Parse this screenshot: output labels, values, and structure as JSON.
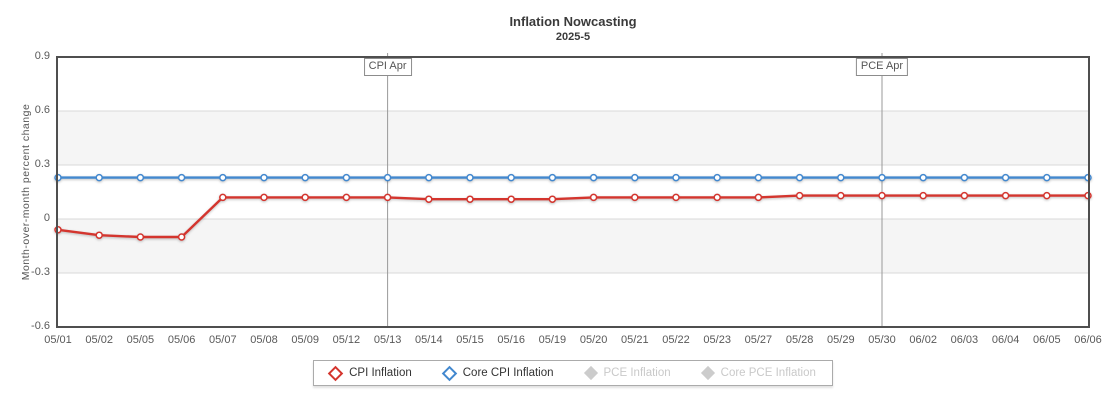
{
  "colors": {
    "cpi": "#d4352e",
    "core_cpi": "#4288cf",
    "disabled": "#cccccc",
    "band": "#f5f5f5",
    "grid": "#d9d9d9",
    "plot_border": "#4f4f4f",
    "event_line": "#999999",
    "tick_text": "#595959",
    "title_text": "#3a3a3a"
  },
  "chart_data": {
    "type": "line",
    "title": "Inflation Nowcasting",
    "subtitle": "2025-5",
    "ylabel": "Month-over-month percent change",
    "xlabel": "",
    "ylim": [
      -0.6,
      0.9
    ],
    "y_ticks": [
      0.9,
      0.6,
      0.3,
      0,
      -0.3,
      -0.6
    ],
    "grid": "horizontal",
    "alternating_bands": true,
    "legend_position": "bottom",
    "categories": [
      "05/01",
      "05/02",
      "05/05",
      "05/06",
      "05/07",
      "05/08",
      "05/09",
      "05/12",
      "05/13",
      "05/14",
      "05/15",
      "05/16",
      "05/19",
      "05/20",
      "05/21",
      "05/22",
      "05/23",
      "05/27",
      "05/28",
      "05/29",
      "05/30",
      "06/02",
      "06/03",
      "06/04",
      "06/05",
      "06/06"
    ],
    "series": [
      {
        "name": "CPI Inflation",
        "color": "#d4352e",
        "enabled": true,
        "values": [
          -0.06,
          -0.09,
          -0.1,
          -0.1,
          0.12,
          0.12,
          0.12,
          0.12,
          0.12,
          0.11,
          0.11,
          0.11,
          0.11,
          0.12,
          0.12,
          0.12,
          0.12,
          0.12,
          0.13,
          0.13,
          0.13,
          0.13,
          0.13,
          0.13,
          0.13,
          0.13
        ]
      },
      {
        "name": "Core CPI Inflation",
        "color": "#4288cf",
        "enabled": true,
        "values": [
          0.23,
          0.23,
          0.23,
          0.23,
          0.23,
          0.23,
          0.23,
          0.23,
          0.23,
          0.23,
          0.23,
          0.23,
          0.23,
          0.23,
          0.23,
          0.23,
          0.23,
          0.23,
          0.23,
          0.23,
          0.23,
          0.23,
          0.23,
          0.23,
          0.23,
          0.23
        ]
      },
      {
        "name": "PCE Inflation",
        "color": "#cccccc",
        "enabled": false,
        "values": []
      },
      {
        "name": "Core PCE Inflation",
        "color": "#cccccc",
        "enabled": false,
        "values": []
      }
    ],
    "annotations": [
      {
        "label": "CPI Apr",
        "category": "05/13"
      },
      {
        "label": "PCE Apr",
        "category": "05/30"
      }
    ]
  }
}
